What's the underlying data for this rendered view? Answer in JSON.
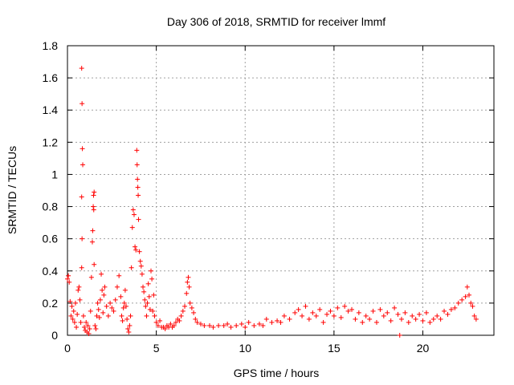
{
  "chart_data": {
    "type": "scatter",
    "title": "Day 306 of 2018, SRMTID for receiver lmmf",
    "xlabel": "GPS time / hours",
    "ylabel": "SRMTID / TECUs",
    "xlim": [
      0,
      24
    ],
    "ylim": [
      0,
      1.8
    ],
    "xticks": [
      0,
      5,
      10,
      15,
      20
    ],
    "yticks": [
      0,
      0.2,
      0.4,
      0.6,
      0.8,
      1,
      1.2,
      1.4,
      1.6,
      1.8
    ],
    "xtick_labels": [
      "0",
      "5",
      "10",
      "15",
      "20"
    ],
    "ytick_labels": [
      "0",
      "0.2",
      "0.4",
      "0.6",
      "0.8",
      "1",
      "1.2",
      "1.4",
      "1.6",
      "1.8"
    ],
    "grid": true,
    "marker": "+",
    "color": "#ff0000",
    "series": [
      {
        "name": "SRMTID",
        "points": [
          [
            0.0,
            0.35
          ],
          [
            0.05,
            0.37
          ],
          [
            0.1,
            0.33
          ],
          [
            0.15,
            0.21
          ],
          [
            0.2,
            0.12
          ],
          [
            0.25,
            0.18
          ],
          [
            0.3,
            0.1
          ],
          [
            0.35,
            0.15
          ],
          [
            0.4,
            0.08
          ],
          [
            0.45,
            0.2
          ],
          [
            0.5,
            0.05
          ],
          [
            0.55,
            0.13
          ],
          [
            0.6,
            0.28
          ],
          [
            0.65,
            0.3
          ],
          [
            0.7,
            0.22
          ],
          [
            0.75,
            0.08
          ],
          [
            0.8,
            1.66
          ],
          [
            0.82,
            1.44
          ],
          [
            0.84,
            1.16
          ],
          [
            0.86,
            1.06
          ],
          [
            0.8,
            0.86
          ],
          [
            0.82,
            0.6
          ],
          [
            0.8,
            0.42
          ],
          [
            0.9,
            0.12
          ],
          [
            0.95,
            0.05
          ],
          [
            1.0,
            0.03
          ],
          [
            1.05,
            0.08
          ],
          [
            1.1,
            0.02
          ],
          [
            1.15,
            0.06
          ],
          [
            1.2,
            0.01
          ],
          [
            1.25,
            0.04
          ],
          [
            1.3,
            0.15
          ],
          [
            1.35,
            0.36
          ],
          [
            1.4,
            0.58
          ],
          [
            1.42,
            0.65
          ],
          [
            1.45,
            0.8
          ],
          [
            1.47,
            0.87
          ],
          [
            1.5,
            0.89
          ],
          [
            1.48,
            0.78
          ],
          [
            1.5,
            0.44
          ],
          [
            1.55,
            0.06
          ],
          [
            1.6,
            0.04
          ],
          [
            1.65,
            0.12
          ],
          [
            1.7,
            0.2
          ],
          [
            1.75,
            0.16
          ],
          [
            1.8,
            0.11
          ],
          [
            1.85,
            0.22
          ],
          [
            1.9,
            0.38
          ],
          [
            1.95,
            0.28
          ],
          [
            2.0,
            0.14
          ],
          [
            2.05,
            0.25
          ],
          [
            2.1,
            0.3
          ],
          [
            2.2,
            0.18
          ],
          [
            2.3,
            0.12
          ],
          [
            2.4,
            0.2
          ],
          [
            2.5,
            0.17
          ],
          [
            2.6,
            0.15
          ],
          [
            2.7,
            0.22
          ],
          [
            2.8,
            0.3
          ],
          [
            2.9,
            0.37
          ],
          [
            3.0,
            0.24
          ],
          [
            3.05,
            0.12
          ],
          [
            3.1,
            0.09
          ],
          [
            3.15,
            0.17
          ],
          [
            3.2,
            0.2
          ],
          [
            3.25,
            0.28
          ],
          [
            3.3,
            0.18
          ],
          [
            3.35,
            0.1
          ],
          [
            3.4,
            0.04
          ],
          [
            3.45,
            0.02
          ],
          [
            3.5,
            0.06
          ],
          [
            3.55,
            0.12
          ],
          [
            3.6,
            0.42
          ],
          [
            3.65,
            0.67
          ],
          [
            3.7,
            0.78
          ],
          [
            3.75,
            0.75
          ],
          [
            3.8,
            0.55
          ],
          [
            3.85,
            0.53
          ],
          [
            3.9,
            1.15
          ],
          [
            3.92,
            1.06
          ],
          [
            3.94,
            0.97
          ],
          [
            3.96,
            0.92
          ],
          [
            3.98,
            0.87
          ],
          [
            4.0,
            0.72
          ],
          [
            4.05,
            0.52
          ],
          [
            4.1,
            0.46
          ],
          [
            4.15,
            0.43
          ],
          [
            4.2,
            0.38
          ],
          [
            4.25,
            0.3
          ],
          [
            4.3,
            0.27
          ],
          [
            4.35,
            0.22
          ],
          [
            4.4,
            0.18
          ],
          [
            4.45,
            0.12
          ],
          [
            4.5,
            0.2
          ],
          [
            4.55,
            0.32
          ],
          [
            4.6,
            0.24
          ],
          [
            4.65,
            0.16
          ],
          [
            4.7,
            0.4
          ],
          [
            4.75,
            0.35
          ],
          [
            4.8,
            0.15
          ],
          [
            4.85,
            0.25
          ],
          [
            4.9,
            0.12
          ],
          [
            5.0,
            0.08
          ],
          [
            5.1,
            0.06
          ],
          [
            5.2,
            0.09
          ],
          [
            5.3,
            0.05
          ],
          [
            5.4,
            0.05
          ],
          [
            5.5,
            0.04
          ],
          [
            5.6,
            0.06
          ],
          [
            5.7,
            0.05
          ],
          [
            5.8,
            0.07
          ],
          [
            5.9,
            0.05
          ],
          [
            6.0,
            0.06
          ],
          [
            6.1,
            0.08
          ],
          [
            6.2,
            0.1
          ],
          [
            6.3,
            0.09
          ],
          [
            6.4,
            0.12
          ],
          [
            6.5,
            0.15
          ],
          [
            6.6,
            0.18
          ],
          [
            6.7,
            0.26
          ],
          [
            6.75,
            0.33
          ],
          [
            6.8,
            0.36
          ],
          [
            6.85,
            0.3
          ],
          [
            6.9,
            0.2
          ],
          [
            7.0,
            0.17
          ],
          [
            7.1,
            0.14
          ],
          [
            7.2,
            0.1
          ],
          [
            7.3,
            0.08
          ],
          [
            7.5,
            0.07
          ],
          [
            7.7,
            0.06
          ],
          [
            8.0,
            0.06
          ],
          [
            8.2,
            0.05
          ],
          [
            8.5,
            0.06
          ],
          [
            8.8,
            0.06
          ],
          [
            9.0,
            0.07
          ],
          [
            9.2,
            0.05
          ],
          [
            9.5,
            0.06
          ],
          [
            9.8,
            0.07
          ],
          [
            10.0,
            0.05
          ],
          [
            10.2,
            0.08
          ],
          [
            10.5,
            0.06
          ],
          [
            10.8,
            0.07
          ],
          [
            11.0,
            0.06
          ],
          [
            11.2,
            0.1
          ],
          [
            11.5,
            0.08
          ],
          [
            11.8,
            0.09
          ],
          [
            12.0,
            0.08
          ],
          [
            12.2,
            0.12
          ],
          [
            12.5,
            0.1
          ],
          [
            12.8,
            0.14
          ],
          [
            13.0,
            0.16
          ],
          [
            13.2,
            0.12
          ],
          [
            13.4,
            0.18
          ],
          [
            13.6,
            0.1
          ],
          [
            13.8,
            0.14
          ],
          [
            14.0,
            0.12
          ],
          [
            14.2,
            0.16
          ],
          [
            14.4,
            0.08
          ],
          [
            14.6,
            0.13
          ],
          [
            14.8,
            0.15
          ],
          [
            15.0,
            0.12
          ],
          [
            15.2,
            0.17
          ],
          [
            15.4,
            0.11
          ],
          [
            15.6,
            0.18
          ],
          [
            15.8,
            0.15
          ],
          [
            16.0,
            0.16
          ],
          [
            16.2,
            0.1
          ],
          [
            16.4,
            0.14
          ],
          [
            16.6,
            0.08
          ],
          [
            16.8,
            0.12
          ],
          [
            17.0,
            0.1
          ],
          [
            17.2,
            0.15
          ],
          [
            17.4,
            0.08
          ],
          [
            17.6,
            0.16
          ],
          [
            17.8,
            0.12
          ],
          [
            18.0,
            0.14
          ],
          [
            18.2,
            0.09
          ],
          [
            18.4,
            0.17
          ],
          [
            18.6,
            0.13
          ],
          [
            18.7,
            0.0
          ],
          [
            18.8,
            0.1
          ],
          [
            19.0,
            0.14
          ],
          [
            19.2,
            0.08
          ],
          [
            19.4,
            0.12
          ],
          [
            19.6,
            0.1
          ],
          [
            19.8,
            0.13
          ],
          [
            20.0,
            0.09
          ],
          [
            20.2,
            0.14
          ],
          [
            20.4,
            0.08
          ],
          [
            20.6,
            0.1
          ],
          [
            20.8,
            0.12
          ],
          [
            21.0,
            0.1
          ],
          [
            21.2,
            0.15
          ],
          [
            21.4,
            0.13
          ],
          [
            21.6,
            0.16
          ],
          [
            21.8,
            0.17
          ],
          [
            22.0,
            0.2
          ],
          [
            22.2,
            0.22
          ],
          [
            22.4,
            0.24
          ],
          [
            22.5,
            0.3
          ],
          [
            22.6,
            0.25
          ],
          [
            22.7,
            0.2
          ],
          [
            22.8,
            0.18
          ],
          [
            22.9,
            0.12
          ],
          [
            23.0,
            0.1
          ]
        ]
      }
    ]
  }
}
